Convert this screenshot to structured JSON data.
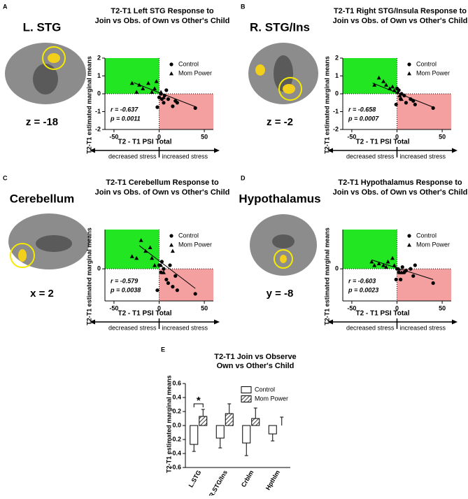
{
  "chart_data": [
    {
      "type": "scatter",
      "panel": "A",
      "region": "L. STG",
      "slice": "z = -18",
      "title": [
        "T2-T1 Left STG Response to",
        "Join vs Obs. of Own vs Other's Child"
      ],
      "y_label": "T2-T1 estimated marginal means",
      "x_label": "T2 - T1 PSI Total",
      "arrow_labels": [
        "decreased stress",
        "increased stress"
      ],
      "stats": [
        "r = -0.637",
        "p = 0.0011"
      ],
      "xlim": [
        -60,
        60
      ],
      "xticks": [
        -50,
        0,
        50
      ],
      "ylim": [
        -2,
        2
      ],
      "yticks": [
        -2,
        -1,
        0,
        1,
        2
      ],
      "quadrant_colors": [
        "#22e622",
        "#f4a0a0"
      ],
      "series": [
        {
          "name": "Control",
          "marker": "circle",
          "color": "#000000",
          "x": [
            0,
            2,
            3,
            5,
            6,
            8,
            10,
            15,
            18,
            20,
            40,
            -2
          ],
          "values": [
            -0.2,
            0.0,
            -0.3,
            -0.5,
            -0.1,
            0.2,
            -0.3,
            -0.7,
            -0.4,
            -0.5,
            -0.8,
            -0.75
          ]
        },
        {
          "name": "Mom Power",
          "marker": "triangle",
          "color": "#000000",
          "x": [
            -30,
            -22,
            -18,
            -12,
            -8,
            -5,
            -3,
            -25,
            2,
            5
          ],
          "values": [
            0.6,
            0.5,
            0.3,
            0.6,
            0.1,
            0.3,
            0.7,
            0.1,
            0.1,
            -0.2
          ]
        }
      ],
      "trend": {
        "x": [
          -28,
          40
        ],
        "y": [
          0.62,
          -0.72
        ]
      }
    },
    {
      "type": "scatter",
      "panel": "B",
      "region": "R. STG/Ins",
      "slice": "z = -2",
      "title": [
        "T2-T1 Right STG/Insula Response to",
        "Join vs Obs. of Own vs Other's Child"
      ],
      "y_label": "T2-T1 estimated marginal means",
      "x_label": "T2 - T1 PSI Total",
      "arrow_labels": [
        "decreased stress",
        "increased stress"
      ],
      "stats": [
        "r = -0.658",
        "p = 0.0007"
      ],
      "xlim": [
        -60,
        60
      ],
      "xticks": [
        -50,
        0,
        50
      ],
      "ylim": [
        -2,
        2
      ],
      "yticks": [
        -2,
        -1,
        0,
        1,
        2
      ],
      "quadrant_colors": [
        "#22e622",
        "#f4a0a0"
      ],
      "series": [
        {
          "name": "Control",
          "marker": "circle",
          "color": "#000000",
          "x": [
            0,
            2,
            4,
            5,
            8,
            10,
            15,
            18,
            20,
            40,
            -1
          ],
          "values": [
            0.3,
            0.2,
            -0.3,
            0.0,
            -0.1,
            -0.5,
            -0.3,
            -0.4,
            -0.6,
            -0.8,
            -0.6
          ]
        },
        {
          "name": "Mom Power",
          "marker": "triangle",
          "color": "#000000",
          "x": [
            -20,
            -15,
            -12,
            -8,
            -5,
            -3,
            -25,
            1,
            3,
            5
          ],
          "values": [
            0.9,
            0.7,
            0.5,
            0.3,
            0.4,
            0.2,
            0.5,
            0.1,
            -0.1,
            -0.3
          ]
        }
      ],
      "trend": {
        "x": [
          -27,
          40
        ],
        "y": [
          0.6,
          -0.75
        ]
      }
    },
    {
      "type": "scatter",
      "panel": "C",
      "region": "Cerebellum",
      "slice": "x = 2",
      "title": [
        "T2-T1 Cerebellum Response to",
        "Join vs Obs. of Own vs Other's Child"
      ],
      "y_label": "T2-T1 estimated marginal means",
      "x_label": "T2 - T1 PSI Total",
      "arrow_labels": [
        "decreased stress",
        "increased stress"
      ],
      "stats": [
        "r = -0.579",
        "p = 0.0038"
      ],
      "xlim": [
        -60,
        60
      ],
      "xticks": [
        -50,
        0,
        50
      ],
      "ylim": [
        -0.9,
        1.1
      ],
      "yticks": [
        0
      ],
      "quadrant_colors": [
        "#22e622",
        "#f4a0a0"
      ],
      "series": [
        {
          "name": "Control",
          "marker": "circle",
          "color": "#000000",
          "x": [
            0,
            2,
            5,
            8,
            10,
            12,
            15,
            18,
            20,
            40,
            -2,
            3
          ],
          "values": [
            0.1,
            -0.1,
            0.0,
            -0.3,
            -0.4,
            0.1,
            -0.5,
            -0.2,
            -0.6,
            -0.7,
            -0.6,
            0.2
          ]
        },
        {
          "name": "Mom Power",
          "marker": "triangle",
          "color": "#000000",
          "x": [
            -20,
            -15,
            -10,
            -25,
            -8,
            -5,
            -30,
            2,
            5,
            15
          ],
          "values": [
            0.8,
            0.5,
            0.6,
            0.3,
            0.3,
            0.1,
            0.35,
            0.1,
            -0.1,
            0.5
          ]
        }
      ],
      "trend": {
        "x": [
          -22,
          40
        ],
        "y": [
          0.65,
          -0.55
        ]
      }
    },
    {
      "type": "scatter",
      "panel": "D",
      "region": "Hypothalamus",
      "slice": "y = -8",
      "title": [
        "T2-T1 Hypothalamus Response to",
        "Join vs Obs. of Own vs Other's Child"
      ],
      "y_label": "T2-T1 estimated marginal means",
      "x_label": "T2 - T1 PSI Total",
      "arrow_labels": [
        "decreased stress",
        "increased stress"
      ],
      "stats": [
        "r = -0.603",
        "p = 0.0023"
      ],
      "xlim": [
        -60,
        60
      ],
      "xticks": [
        -50,
        0,
        50
      ],
      "ylim": [
        -0.9,
        1.1
      ],
      "yticks": [
        0
      ],
      "quadrant_colors": [
        "#22e622",
        "#f4a0a0"
      ],
      "series": [
        {
          "name": "Control",
          "marker": "circle",
          "color": "#000000",
          "x": [
            0,
            2,
            4,
            6,
            8,
            10,
            15,
            18,
            20,
            40,
            -1
          ],
          "values": [
            0.0,
            -0.1,
            -0.3,
            0.05,
            -0.1,
            -0.05,
            0.0,
            -0.2,
            0.1,
            -0.4,
            -0.3
          ]
        },
        {
          "name": "Mom Power",
          "marker": "triangle",
          "color": "#000000",
          "x": [
            -28,
            -20,
            -15,
            -10,
            -5,
            -3,
            -25,
            2,
            5,
            -12
          ],
          "values": [
            0.2,
            0.15,
            0.1,
            0.2,
            0.3,
            0.1,
            0.1,
            0.0,
            -0.1,
            0.05
          ]
        }
      ],
      "trend": {
        "x": [
          -28,
          40
        ],
        "y": [
          0.25,
          -0.3
        ]
      }
    },
    {
      "type": "bar",
      "panel": "E",
      "title": [
        "T2-T1 Join vs Observe",
        "Own vs Other's Child"
      ],
      "y_label": "T2-T1 estimated marginal means",
      "categories": [
        "L.STG",
        "R.STG/Ins",
        "Crblm",
        "Hpthlm"
      ],
      "ylim": [
        -0.6,
        0.6
      ],
      "yticks": [
        -0.6,
        -0.4,
        -0.2,
        {
          "value": 0,
          "label": "0.0"
        },
        0.2,
        0.4,
        0.6
      ],
      "series": [
        {
          "name": "Control",
          "hatch": false,
          "values": [
            -0.27,
            -0.18,
            -0.25,
            -0.12
          ],
          "errors": [
            0.1,
            0.14,
            0.18,
            0.1
          ]
        },
        {
          "name": "Mom Power",
          "hatch": true,
          "values": [
            0.13,
            0.17,
            0.1,
            0.0
          ],
          "errors": [
            0.1,
            0.14,
            0.15,
            0.12
          ]
        }
      ],
      "significance_label": "*"
    }
  ]
}
